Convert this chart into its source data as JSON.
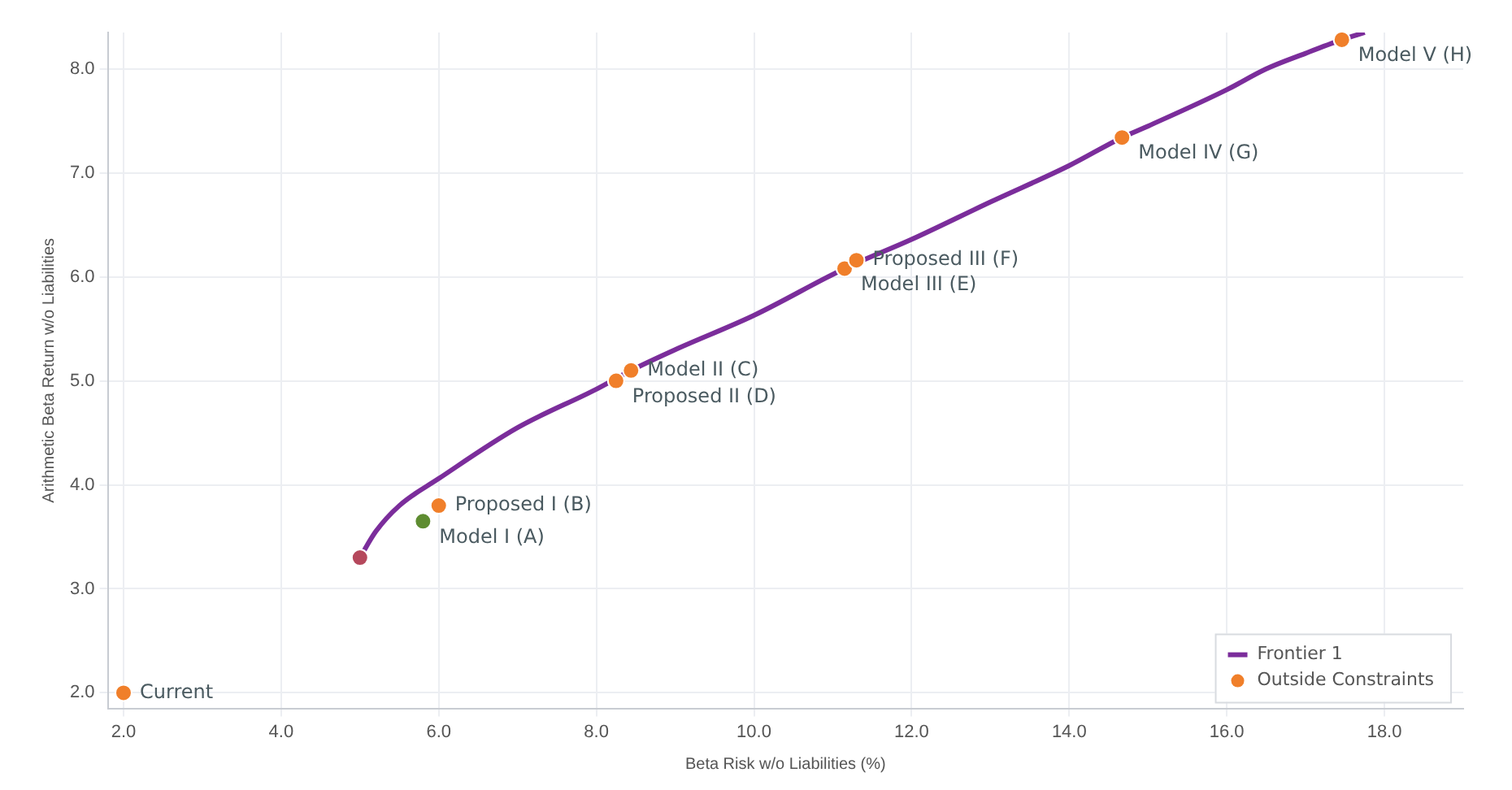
{
  "chart_data": {
    "type": "line",
    "xlabel": "Beta Risk w/o Liabilities (%)",
    "ylabel": "Arithmetic Beta Return w/o Liabilities",
    "xlim": [
      1.8,
      19
    ],
    "ylim": [
      1.85,
      8.35
    ],
    "xticks": [
      {
        "value": 2,
        "label": "2.0"
      },
      {
        "value": 4,
        "label": "4.0"
      },
      {
        "value": 6,
        "label": "6.0"
      },
      {
        "value": 8,
        "label": "8.0"
      },
      {
        "value": 10,
        "label": "10.0"
      },
      {
        "value": 12,
        "label": "12.0"
      },
      {
        "value": 14,
        "label": "14.0"
      },
      {
        "value": 16,
        "label": "16.0"
      },
      {
        "value": 18,
        "label": "18.0"
      }
    ],
    "yticks": [
      {
        "value": 2,
        "label": "2.0"
      },
      {
        "value": 3,
        "label": "3.0"
      },
      {
        "value": 4,
        "label": "4.0"
      },
      {
        "value": 5,
        "label": "5.0"
      },
      {
        "value": 6,
        "label": "6.0"
      },
      {
        "value": 7,
        "label": "7.0"
      },
      {
        "value": 8,
        "label": "8.0"
      }
    ],
    "grid": true,
    "legend": "bottom right",
    "marker": "circle",
    "series": [
      {
        "name": "Frontier 1",
        "color": "#7b2d9b",
        "marker": "none",
        "x": [
          5.0,
          5.2,
          5.5,
          6.0,
          7.0,
          8.0,
          8.44,
          9.0,
          10.0,
          11.15,
          12.0,
          13.0,
          14.0,
          14.67,
          15.0,
          16.0,
          16.5,
          17.0,
          17.46,
          17.75
        ],
        "values": [
          3.3,
          3.55,
          3.8,
          4.06,
          4.55,
          4.92,
          5.1,
          5.3,
          5.63,
          6.08,
          6.36,
          6.72,
          7.07,
          7.34,
          7.45,
          7.8,
          8.0,
          8.15,
          8.28,
          8.35
        ]
      },
      {
        "name": "Outside Constraints",
        "type": "scatter",
        "color": "#f07f2a",
        "x": [
          2.0,
          6.0,
          8.25,
          8.44,
          11.15,
          11.3,
          14.67,
          17.46
        ],
        "values": [
          2.0,
          3.8,
          5.0,
          5.1,
          6.08,
          6.16,
          7.34,
          8.28
        ]
      },
      {
        "type": "scatter",
        "color": "#5e8c31",
        "x": [
          5.8
        ],
        "values": [
          3.65
        ]
      },
      {
        "type": "scatter",
        "color": "#b5485c",
        "x": [
          5.0
        ],
        "values": [
          3.3
        ]
      }
    ],
    "annotations": [
      {
        "text": "Current",
        "x": 2.0,
        "y": 2.0
      },
      {
        "text": "Model I (A)",
        "x": 5.8,
        "y": 3.65
      },
      {
        "text": "Proposed I (B)",
        "x": 6.0,
        "y": 3.8
      },
      {
        "text": "Model II (C)",
        "x": 8.44,
        "y": 5.1
      },
      {
        "text": "Proposed II (D)",
        "x": 8.25,
        "y": 5.0
      },
      {
        "text": "Model III (E)",
        "x": 11.15,
        "y": 6.08
      },
      {
        "text": "Proposed III (F)",
        "x": 11.3,
        "y": 6.16
      },
      {
        "text": "Model IV (G)",
        "x": 14.67,
        "y": 7.34
      },
      {
        "text": "Model V (H)",
        "x": 17.46,
        "y": 8.28
      }
    ]
  }
}
